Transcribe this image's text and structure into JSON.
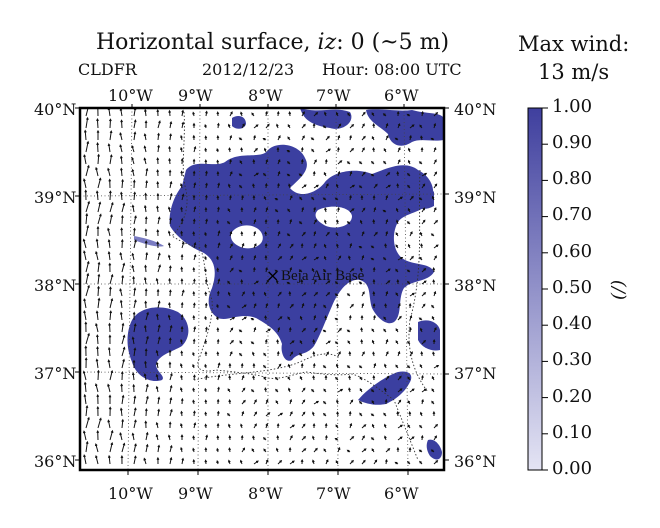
{
  "title": {
    "prefix": "Horizontal surface, ",
    "var": "iz",
    "suffix": ": 0 (~5 m)"
  },
  "subtitle": {
    "field": "CLDFR",
    "date": "2012/12/23",
    "hour": "Hour: 08:00 UTC"
  },
  "max_wind": {
    "label": "Max wind:",
    "value": "13 m/s"
  },
  "lon_labels": [
    "10°W",
    "9°W",
    "8°W",
    "7°W",
    "6°W"
  ],
  "lat_labels": [
    "40°N",
    "39°N",
    "38°N",
    "37°N",
    "36°N"
  ],
  "marker": {
    "symbol": "×",
    "label": "Beja Air Base"
  },
  "colorbar": {
    "ticks": [
      "1.00",
      "0.90",
      "0.80",
      "0.70",
      "0.60",
      "0.50",
      "0.40",
      "0.30",
      "0.20",
      "0.10",
      "0.00"
    ],
    "unit": "(/)",
    "color_max": "#3f3f9e",
    "color_min": "#e4e4f4"
  },
  "colors": {
    "cloud": "#3b3fa0",
    "arrow": "#111111",
    "frame": "#000000"
  }
}
